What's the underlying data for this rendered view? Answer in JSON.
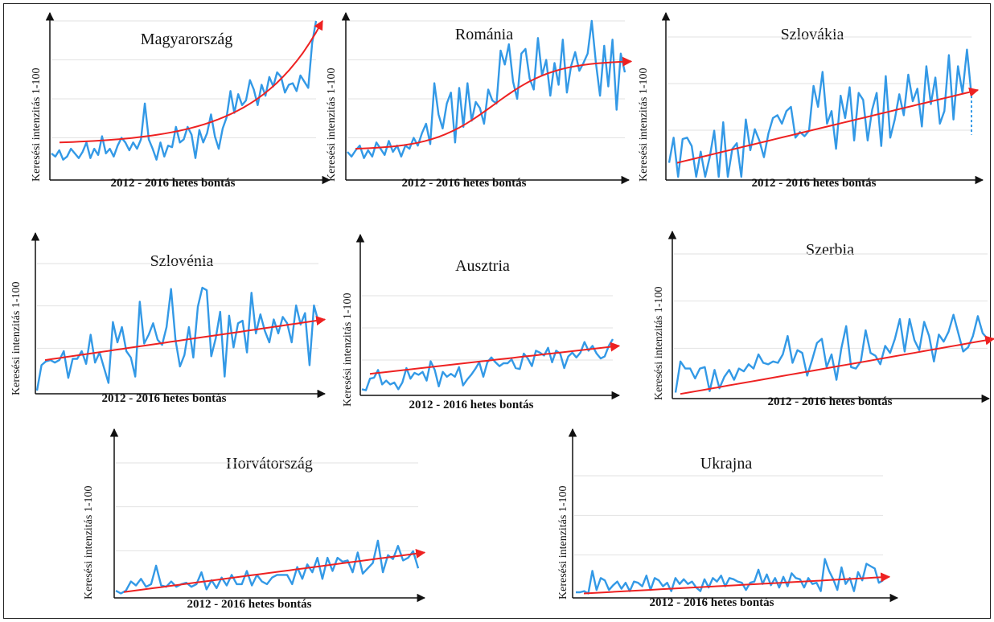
{
  "colors": {
    "series": "#3399e6",
    "trend": "#ee2222",
    "axis": "#111111",
    "grid": "#e2e2e2"
  },
  "chart_data": [
    {
      "type": "line",
      "title": "Magyarország",
      "xlabel": "2012 - 2016 hetes bontás",
      "ylabel": "Keresési intenzitás 1-100",
      "ylim": [
        0,
        100
      ],
      "grid": true,
      "trend": "exponential",
      "values": [
        15,
        13,
        17,
        11,
        13,
        18,
        15,
        12,
        16,
        22,
        12,
        18,
        14,
        26,
        15,
        18,
        13,
        20,
        25,
        22,
        17,
        22,
        18,
        24,
        47,
        24,
        18,
        11,
        22,
        13,
        20,
        19,
        32,
        22,
        24,
        32,
        27,
        12,
        30,
        22,
        28,
        40,
        26,
        18,
        31,
        38,
        55,
        41,
        53,
        46,
        49,
        62,
        56,
        46,
        59,
        52,
        64,
        58,
        67,
        64,
        54,
        59,
        60,
        55,
        65,
        61,
        57,
        86,
        100
      ],
      "trend_values": [
        22,
        100
      ]
    },
    {
      "type": "line",
      "title": "Románia",
      "xlabel": "2012 - 2016 hetes bontás",
      "ylabel": "Keresési intenzitás 1-100",
      "ylim": [
        0,
        100
      ],
      "grid": true,
      "trend": "sigmoid",
      "values": [
        16,
        13,
        17,
        20,
        12,
        17,
        13,
        22,
        18,
        14,
        23,
        16,
        20,
        13,
        20,
        18,
        25,
        20,
        28,
        34,
        21,
        60,
        40,
        31,
        47,
        54,
        22,
        57,
        32,
        60,
        36,
        48,
        44,
        34,
        56,
        49,
        47,
        81,
        72,
        85,
        61,
        50,
        79,
        82,
        63,
        56,
        89,
        65,
        75,
        52,
        73,
        59,
        88,
        54,
        71,
        80,
        68,
        73,
        79,
        100,
        73,
        52,
        84,
        58,
        88,
        43,
        79,
        67
      ],
      "trend_values": [
        18,
        74
      ]
    },
    {
      "type": "line",
      "title": "Szlovákia",
      "xlabel": "2012 - 2016 hetes bontás",
      "ylabel": "Keresési intenzitás 1-100",
      "ylim": [
        0,
        100
      ],
      "grid": true,
      "trend": "linear",
      "note": "dotted_drop_at_end",
      "values": [
        10,
        28,
        0,
        27,
        28,
        22,
        0,
        18,
        0,
        14,
        33,
        0,
        39,
        0,
        20,
        24,
        0,
        41,
        19,
        34,
        26,
        14,
        31,
        42,
        44,
        38,
        47,
        50,
        28,
        32,
        29,
        33,
        65,
        50,
        75,
        38,
        47,
        20,
        58,
        42,
        64,
        26,
        60,
        55,
        26,
        48,
        60,
        22,
        72,
        28,
        41,
        59,
        44,
        73,
        54,
        63,
        36,
        79,
        52,
        71,
        38,
        47,
        87,
        41,
        79,
        60,
        91,
        58
      ],
      "trend_values": [
        10,
        62
      ]
    },
    {
      "type": "line",
      "title": "Szlovénia",
      "xlabel": "2012 - 2016 hetes bontás",
      "ylabel": "Keresési intenzitás 1-100",
      "ylim": [
        0,
        100
      ],
      "grid": true,
      "trend": "linear",
      "values": [
        0,
        20,
        23,
        24,
        22,
        24,
        31,
        10,
        25,
        25,
        31,
        21,
        44,
        22,
        30,
        18,
        6,
        54,
        38,
        50,
        31,
        26,
        11,
        70,
        37,
        44,
        53,
        40,
        36,
        50,
        80,
        40,
        19,
        28,
        50,
        26,
        66,
        81,
        79,
        27,
        41,
        62,
        11,
        59,
        34,
        53,
        55,
        30,
        77,
        45,
        60,
        47,
        38,
        56,
        45,
        58,
        53,
        38,
        67,
        52,
        61,
        20,
        67,
        54
      ],
      "trend_values": [
        24,
        56
      ]
    },
    {
      "type": "line",
      "title": "Ausztria",
      "xlabel": "2012 - 2016 hetes bontás",
      "ylabel": "Keresési intenzitás 1-100",
      "ylim": [
        0,
        100
      ],
      "grid": true,
      "trend": "linear",
      "values": [
        3,
        2,
        14,
        15,
        23,
        8,
        12,
        8,
        10,
        3,
        10,
        25,
        14,
        20,
        18,
        21,
        12,
        32,
        23,
        6,
        21,
        16,
        19,
        16,
        26,
        7,
        13,
        18,
        24,
        31,
        16,
        31,
        36,
        31,
        27,
        30,
        30,
        34,
        25,
        24,
        40,
        35,
        27,
        43,
        41,
        38,
        46,
        31,
        43,
        40,
        25,
        37,
        41,
        36,
        41,
        52,
        43,
        48,
        40,
        35,
        37,
        48,
        55
      ],
      "trend_values": [
        19,
        48
      ]
    },
    {
      "type": "line",
      "title": "Szerbia",
      "xlabel": "2012 - 2016 hetes bontás",
      "ylabel": "Keresési intenzitás 1-100",
      "ylim": [
        0,
        100
      ],
      "grid": true,
      "trend": "linear",
      "values": [
        2,
        24,
        19,
        19,
        12,
        19,
        20,
        3,
        18,
        5,
        13,
        18,
        11,
        19,
        17,
        22,
        19,
        29,
        23,
        22,
        24,
        23,
        29,
        42,
        23,
        32,
        30,
        14,
        25,
        37,
        40,
        20,
        29,
        11,
        33,
        49,
        20,
        19,
        24,
        46,
        30,
        28,
        22,
        35,
        30,
        40,
        54,
        31,
        54,
        39,
        32,
        52,
        42,
        24,
        43,
        38,
        45,
        57,
        44,
        31,
        34,
        42,
        56,
        44,
        40
      ],
      "trend_values": [
        1,
        40
      ]
    },
    {
      "type": "line",
      "title": "Horvátország",
      "xlabel": "2012 - 2016 hetes bontás",
      "ylabel": "Keresési intenzitás 1-100",
      "ylim": [
        0,
        100
      ],
      "grid": true,
      "trend": "linear",
      "values": [
        3,
        1,
        3,
        10,
        7,
        12,
        6,
        8,
        22,
        7,
        6,
        10,
        6,
        8,
        9,
        6,
        8,
        17,
        4,
        11,
        5,
        13,
        7,
        15,
        8,
        8,
        18,
        7,
        15,
        10,
        8,
        13,
        15,
        15,
        15,
        8,
        21,
        12,
        23,
        17,
        28,
        12,
        28,
        18,
        28,
        25,
        26,
        17,
        32,
        16,
        20,
        24,
        41,
        17,
        30,
        27,
        37,
        26,
        28,
        33,
        20
      ],
      "trend_values": [
        2,
        32
      ]
    },
    {
      "type": "line",
      "title": "Ukrajna",
      "xlabel": "2012 - 2016 hetes bontás",
      "ylabel": "Keresési intenzitás 1-100",
      "ylim": [
        0,
        100
      ],
      "grid": true,
      "trend": "linear",
      "values": [
        2,
        2,
        3,
        1,
        20,
        4,
        14,
        12,
        4,
        8,
        11,
        5,
        10,
        3,
        11,
        10,
        7,
        16,
        4,
        14,
        12,
        7,
        10,
        3,
        14,
        9,
        13,
        9,
        11,
        6,
        3,
        13,
        6,
        14,
        11,
        16,
        7,
        14,
        13,
        11,
        10,
        4,
        10,
        11,
        21,
        9,
        17,
        8,
        14,
        6,
        15,
        7,
        18,
        14,
        13,
        6,
        14,
        9,
        10,
        3,
        30,
        20,
        13,
        4,
        23,
        9,
        14,
        3,
        19,
        12,
        26,
        24,
        22,
        10,
        12
      ],
      "trend_values": [
        1,
        15
      ]
    }
  ]
}
